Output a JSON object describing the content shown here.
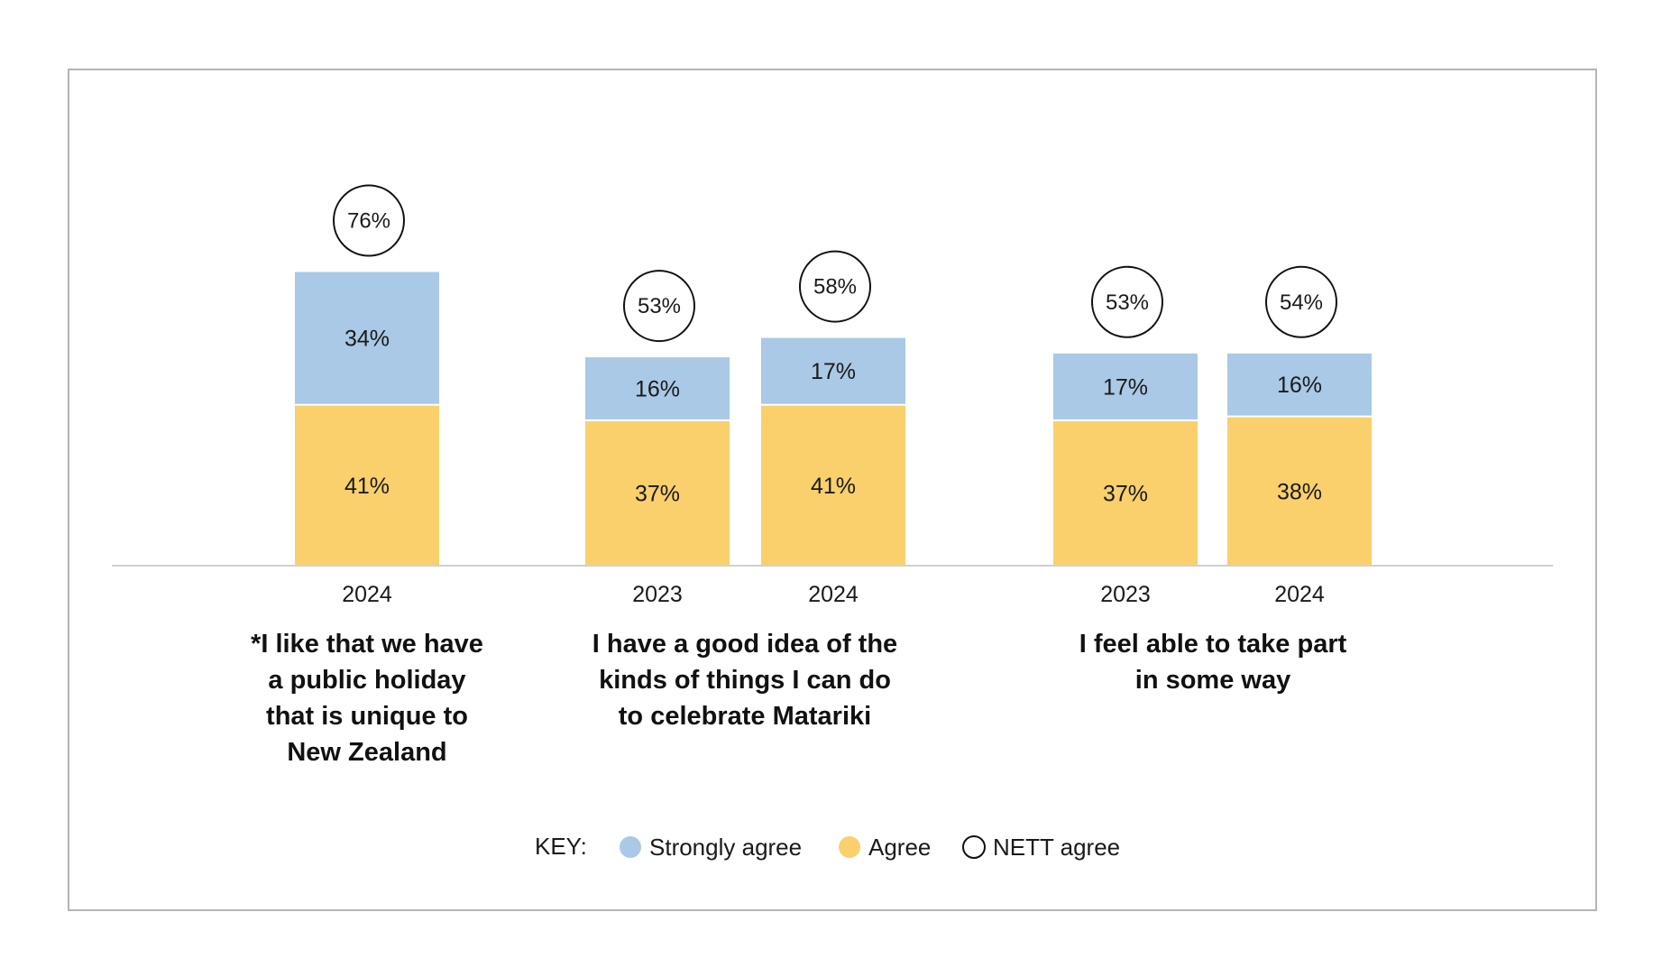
{
  "colors": {
    "strongly_agree": "#a9c9e6",
    "agree": "#fad06c",
    "nett_ring": "#111111",
    "axis": "#cfcfcf",
    "frame": "#b5b5b5"
  },
  "legend": {
    "key_label": "KEY:",
    "items": [
      {
        "label": "Strongly agree",
        "marker": "filled-circle",
        "color": "#a9c9e6"
      },
      {
        "label": "Agree",
        "marker": "filled-circle",
        "color": "#fad06c"
      },
      {
        "label": "NETT agree",
        "marker": "outline-circle",
        "color": "#111111"
      }
    ]
  },
  "chart_data": {
    "type": "bar",
    "stacked": true,
    "ylim": [
      0,
      100
    ],
    "grid": false,
    "legend_position": "bottom-center",
    "series_names": [
      "Strongly agree",
      "Agree"
    ],
    "groups": [
      {
        "label_lines": [
          "*I like that we have",
          "a public holiday",
          "that is unique to",
          "New Zealand"
        ],
        "bars": [
          {
            "year": "2024",
            "agree": 41,
            "agree_label": "41%",
            "strongly_agree": 34,
            "strongly_agree_label": "34%",
            "nett": 76,
            "nett_label": "76%"
          }
        ]
      },
      {
        "label_lines": [
          "I have a good idea of the",
          "kinds of things I can do",
          "to celebrate Matariki"
        ],
        "bars": [
          {
            "year": "2023",
            "agree": 37,
            "agree_label": "37%",
            "strongly_agree": 16,
            "strongly_agree_label": "16%",
            "nett": 53,
            "nett_label": "53%"
          },
          {
            "year": "2024",
            "agree": 41,
            "agree_label": "41%",
            "strongly_agree": 17,
            "strongly_agree_label": "17%",
            "nett": 58,
            "nett_label": "58%"
          }
        ]
      },
      {
        "label_lines": [
          "I feel able to take part",
          "in some way"
        ],
        "bars": [
          {
            "year": "2023",
            "agree": 37,
            "agree_label": "37%",
            "strongly_agree": 17,
            "strongly_agree_label": "17%",
            "nett": 53,
            "nett_label": "53%"
          },
          {
            "year": "2024",
            "agree": 38,
            "agree_label": "38%",
            "strongly_agree": 16,
            "strongly_agree_label": "16%",
            "nett": 54,
            "nett_label": "54%"
          }
        ]
      }
    ]
  }
}
